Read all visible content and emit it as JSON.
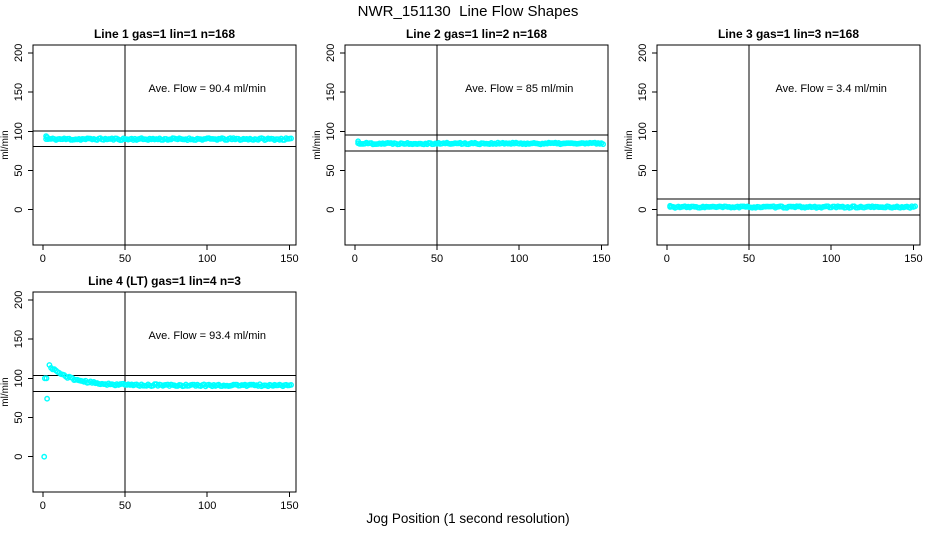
{
  "figure": {
    "title": "NWR_151130  Line Flow Shapes",
    "xlabel": "Jog Position (1 second resolution)",
    "background": "#ffffff",
    "point_color": "#00ffff",
    "axis_color": "#000000"
  },
  "chart_data": [
    {
      "type": "scatter",
      "title": "Line 1 gas=1 lin=1 n=168",
      "gas": 1,
      "lin": 1,
      "n": 168,
      "annotation": "Ave. Flow =  90.4  ml/min",
      "ave_flow": 90.4,
      "ylabel": "ml/min",
      "xlim": [
        -6,
        154
      ],
      "ylim": [
        -45,
        210
      ],
      "x_ticks": [
        0,
        50,
        100,
        150
      ],
      "y_ticks": [
        0,
        50,
        100,
        150,
        200
      ],
      "ref_lines_y": [
        100.4,
        80.4
      ],
      "ref_line_x": 50,
      "annotation_pos": [
        100,
        150
      ],
      "series": {
        "x_start": 2,
        "x_end": 151,
        "step": 1,
        "baseline": 90,
        "jitter": 1.3,
        "seed": 11,
        "lead_points": [
          [
            2,
            93.8
          ],
          [
            2.6,
            92.5
          ]
        ]
      }
    },
    {
      "type": "scatter",
      "title": "Line 2 gas=1 lin=2 n=168",
      "gas": 1,
      "lin": 2,
      "n": 168,
      "annotation": "Ave. Flow =  85  ml/min",
      "ave_flow": 85,
      "ylabel": "ml/min",
      "xlim": [
        -6,
        154
      ],
      "ylim": [
        -45,
        210
      ],
      "x_ticks": [
        0,
        50,
        100,
        150
      ],
      "y_ticks": [
        0,
        50,
        100,
        150,
        200
      ],
      "ref_lines_y": [
        95,
        75
      ],
      "ref_line_x": 50,
      "annotation_pos": [
        100,
        150
      ],
      "series": {
        "x_start": 2,
        "x_end": 151,
        "step": 1,
        "baseline": 84.5,
        "jitter": 1.1,
        "seed": 22,
        "lead_points": [
          [
            2,
            87.2
          ]
        ]
      }
    },
    {
      "type": "scatter",
      "title": "Line 3 gas=1 lin=3 n=168",
      "gas": 1,
      "lin": 3,
      "n": 168,
      "annotation": "Ave. Flow =  3.4  ml/min",
      "ave_flow": 3.4,
      "ylabel": "ml/min",
      "xlim": [
        -6,
        154
      ],
      "ylim": [
        -45,
        210
      ],
      "x_ticks": [
        0,
        50,
        100,
        150
      ],
      "y_ticks": [
        0,
        50,
        100,
        150,
        200
      ],
      "ref_lines_y": [
        13.4,
        -6.6
      ],
      "ref_line_x": 50,
      "annotation_pos": [
        100,
        150
      ],
      "series": {
        "x_start": 2,
        "x_end": 151,
        "step": 1,
        "baseline": 3.4,
        "jitter": 1.0,
        "seed": 33,
        "lead_points": [
          [
            2,
            5.0
          ]
        ]
      }
    },
    {
      "type": "scatter",
      "title": "Line 4 (LT) gas=1 lin=4 n=3",
      "gas": 1,
      "lin": 4,
      "n": 3,
      "annotation": "Ave. Flow =  93.4  ml/min",
      "ave_flow": 93.4,
      "ylabel": "ml/min",
      "xlim": [
        -6,
        154
      ],
      "ylim": [
        -45,
        210
      ],
      "x_ticks": [
        0,
        50,
        100,
        150
      ],
      "y_ticks": [
        0,
        50,
        100,
        150,
        200
      ],
      "ref_lines_y": [
        103.4,
        83.4
      ],
      "ref_line_x": 50,
      "annotation_pos": [
        100,
        150
      ],
      "series": {
        "x_start": 4,
        "x_end": 151,
        "step": 1,
        "baseline": 91,
        "jitter": 1.3,
        "seed": 44,
        "decay_amp": 25,
        "decay_tau": 13,
        "lead_points": [
          [
            0.8,
            0
          ],
          [
            1.2,
            100
          ],
          [
            2.2,
            100
          ],
          [
            2.6,
            74
          ]
        ]
      }
    }
  ]
}
